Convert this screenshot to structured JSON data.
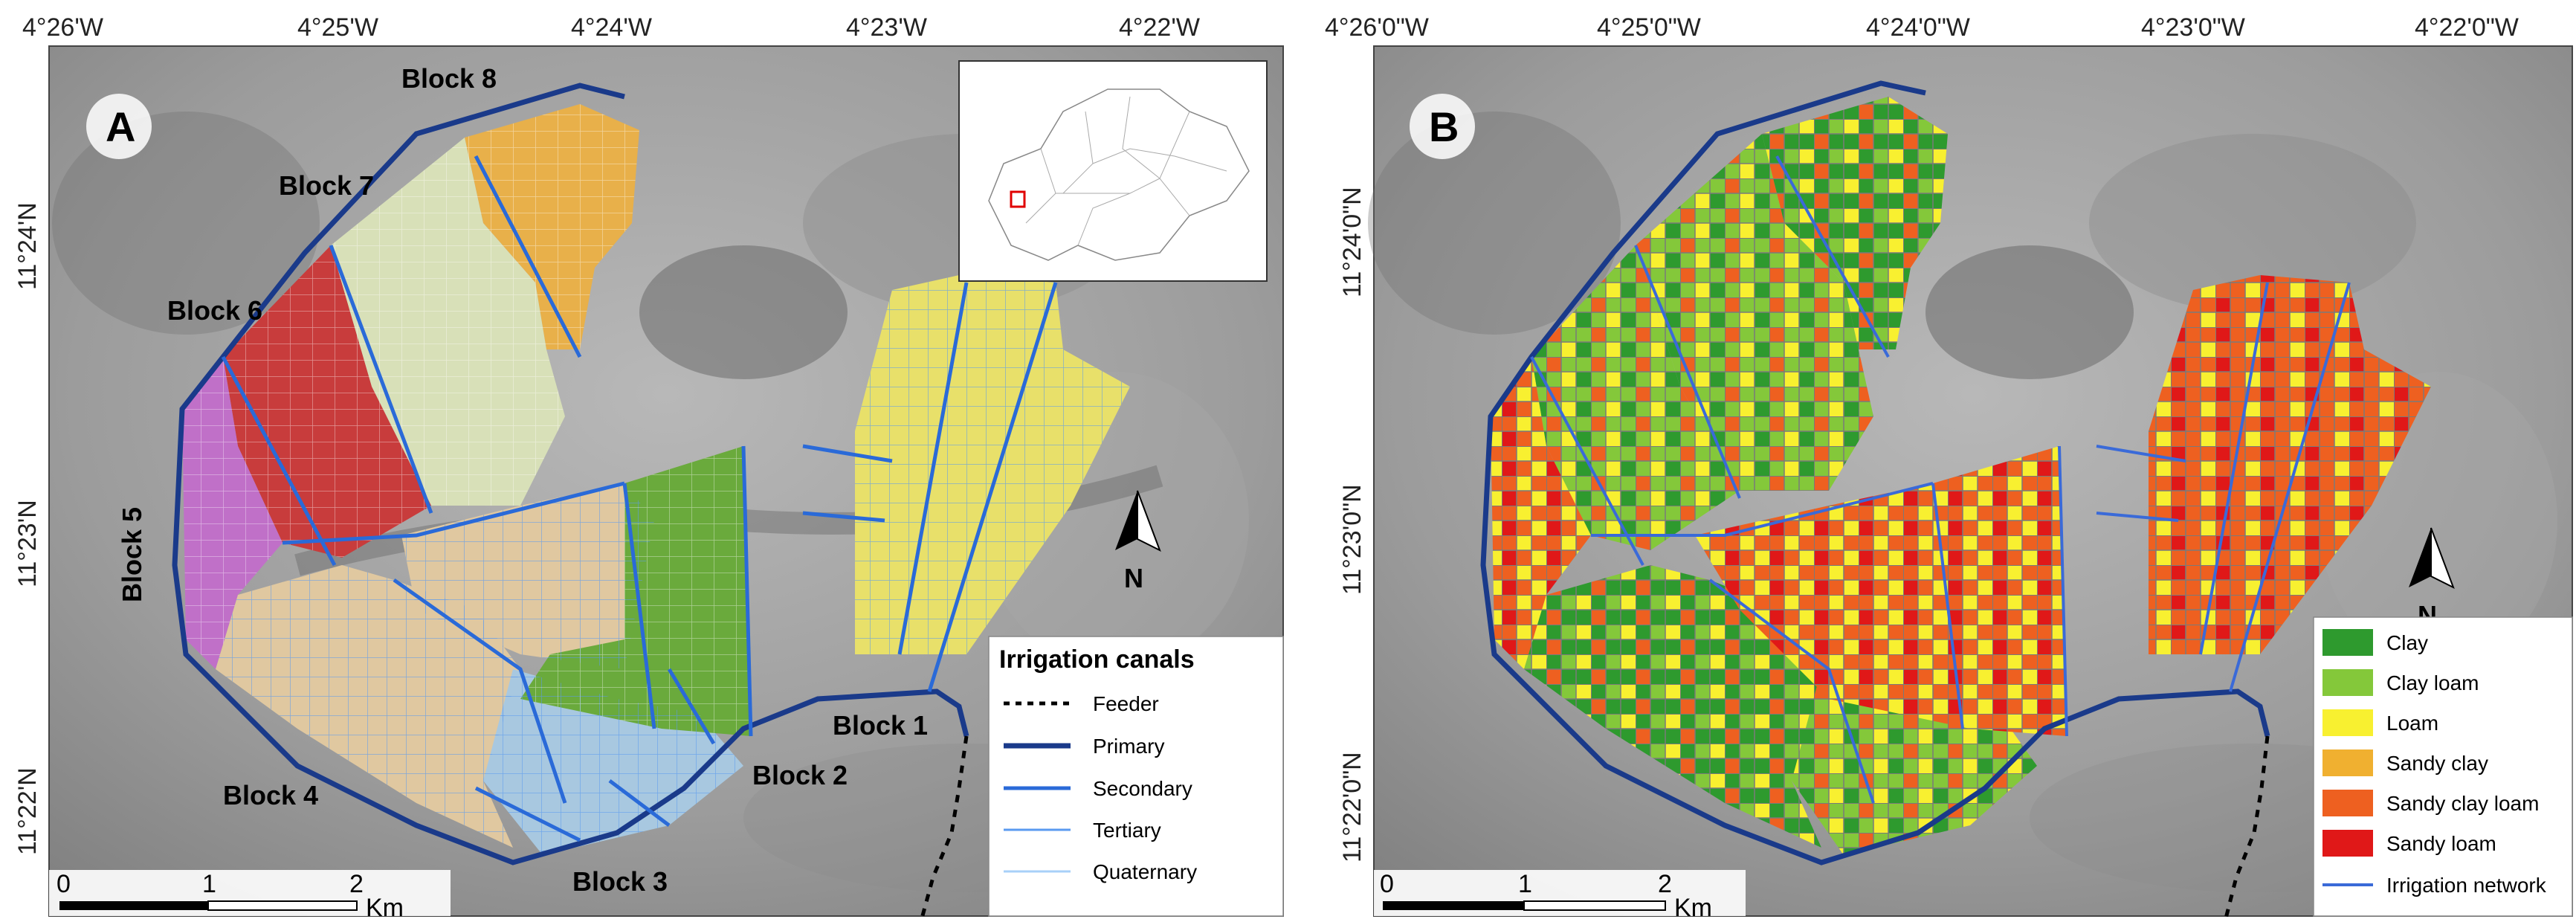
{
  "panel_a": {
    "letter": "A",
    "lon_ticks": [
      "4°26'W",
      "4°25'W",
      "4°24'W",
      "4°23'W",
      "4°22'W"
    ],
    "lat_ticks": [
      "11°24'N",
      "11°23'N",
      "11°22'N"
    ],
    "blocks": [
      "Block 8",
      "Block 7",
      "Block 6",
      "Block 5",
      "Block 4",
      "Block 3",
      "Block 2",
      "Block 1"
    ],
    "block_colors": {
      "block1": "#e8e06a",
      "block2": "#6aaa3c",
      "block3": "#a8c8e0",
      "block4": "#e0c8a0",
      "block5": "#c070c8",
      "block6": "#c83c3c",
      "block7": "#d8e0b8",
      "block8": "#e8b04a"
    },
    "north": "N",
    "scale": {
      "labels": [
        "0",
        "1",
        "2"
      ],
      "unit": "Km"
    },
    "legend": {
      "title": "Irrigation canals",
      "items": [
        "Feeder",
        "Primary",
        "Secondary",
        "Tertiary",
        "Quaternary"
      ],
      "colors": [
        "#000000",
        "#1a3a8a",
        "#2a6ad8",
        "#5a9af0",
        "#a8d0f8"
      ]
    }
  },
  "panel_b": {
    "letter": "B",
    "lon_ticks": [
      "4°26'0\"W",
      "4°25'0\"W",
      "4°24'0\"W",
      "4°23'0\"W",
      "4°22'0\"W"
    ],
    "lat_ticks": [
      "11°24'0\"N",
      "11°23'0\"N",
      "11°22'0\"N"
    ],
    "north": "N",
    "scale": {
      "labels": [
        "0",
        "1",
        "2"
      ],
      "unit": "Km"
    },
    "legend": {
      "items": [
        "Clay",
        "Clay loam",
        "Loam",
        "Sandy clay",
        "Sandy clay loam",
        "Sandy loam",
        "Irrigation network"
      ],
      "colors": [
        "#2e9a2e",
        "#84c83a",
        "#f8f030",
        "#f0b030",
        "#ee6020",
        "#e01818",
        "#3a6ad8"
      ]
    }
  }
}
